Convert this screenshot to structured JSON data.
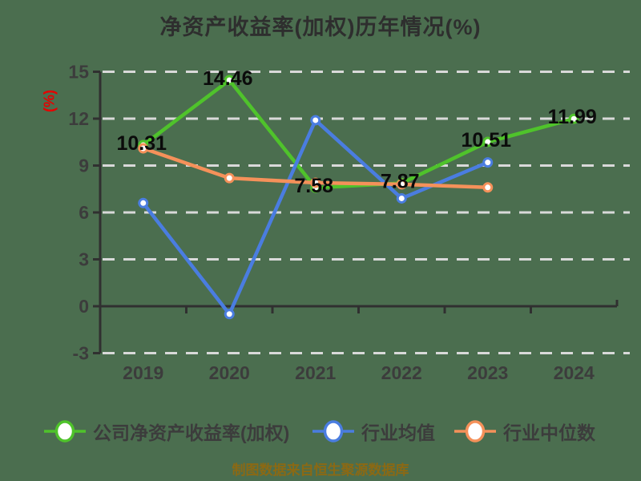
{
  "colors": {
    "background": "#4b6e4f",
    "grid": "#d9d9d9",
    "axis": "#303030",
    "tick_text": "#3c3c3c",
    "data_label_text": "#0b0b0b",
    "y_axis_title": "#e60000",
    "source_note": "#8b6914",
    "marker_fill": "#ffffff"
  },
  "chart_data": {
    "type": "line",
    "title": "净资产收益率(加权)历年情况(%)",
    "ylabel": "(%)",
    "xlabel": "",
    "categories": [
      "2019",
      "2020",
      "2021",
      "2022",
      "2023",
      "2024"
    ],
    "yticks": [
      15,
      12,
      9,
      6,
      3,
      0,
      -3
    ],
    "ylim": [
      -3,
      15
    ],
    "grid": true,
    "legend_position": "bottom",
    "series": [
      {
        "name": "公司净资产收益率(加权)",
        "color": "#4fc32b",
        "values": [
          10.31,
          14.46,
          7.58,
          7.87,
          10.51,
          11.99
        ],
        "labeled": true,
        "labels": [
          "10.31",
          "14.46",
          "7.58",
          "7.87",
          "10.51",
          "11.99"
        ]
      },
      {
        "name": "行业均值",
        "color": "#4a7de0",
        "values": [
          6.6,
          -0.5,
          11.9,
          6.9,
          9.2,
          null
        ],
        "labeled": false
      },
      {
        "name": "行业中位数",
        "color": "#f5915a",
        "values": [
          10.1,
          8.2,
          7.9,
          7.8,
          7.6,
          null
        ],
        "labeled": false
      }
    ]
  },
  "footer": {
    "source_note": "制图数据来自恒生聚源数据库"
  }
}
